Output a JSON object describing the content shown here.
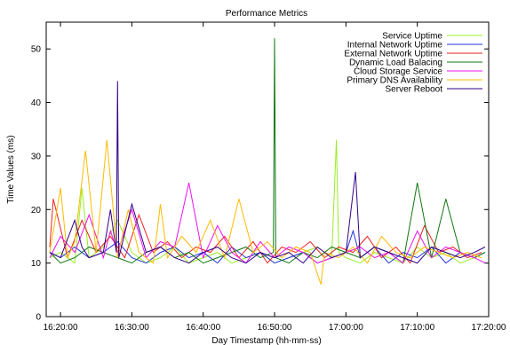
{
  "chart_data": {
    "type": "line",
    "title": "Performance Metrics",
    "xlabel": "Day Timestamp (hh-mm-ss)",
    "ylabel": "Time Values (ms)",
    "xlim": [
      "16:18:00",
      "17:20:00"
    ],
    "ylim": [
      0,
      55
    ],
    "grid": false,
    "legend_position": "top-right",
    "xticks": [
      "16:20:00",
      "16:30:00",
      "16:40:00",
      "16:50:00",
      "17:00:00",
      "17:10:00",
      "17:20:00"
    ],
    "yticks": [
      0,
      10,
      20,
      30,
      40,
      50
    ],
    "series": [
      {
        "name": "Service Uptime",
        "color": "#99ee22",
        "x": [
          "16:18:30",
          "16:20:00",
          "16:22:00",
          "16:23:00",
          "16:24:00",
          "16:26:00",
          "16:28:00",
          "16:30:00",
          "16:32:00",
          "16:34:00",
          "16:36:00",
          "16:38:00",
          "16:40:00",
          "16:42:00",
          "16:44:00",
          "16:46:00",
          "16:48:00",
          "16:50:00",
          "16:52:00",
          "16:54:00",
          "16:56:00",
          "16:58:00",
          "16:58:40",
          "16:59:00",
          "17:00:00",
          "17:02:00",
          "17:04:00",
          "17:06:00",
          "17:08:00",
          "17:10:00",
          "17:12:00",
          "17:14:00",
          "17:16:00",
          "17:18:00",
          "17:19:30"
        ],
        "values": [
          11,
          12,
          10,
          24,
          11,
          13,
          18,
          12,
          10,
          11,
          13,
          10,
          11,
          12,
          10,
          11,
          12,
          10,
          11,
          12,
          13,
          11,
          33,
          12,
          11,
          10,
          12,
          11,
          10,
          13,
          11,
          12,
          10,
          11,
          12
        ]
      },
      {
        "name": "Internal Network Uptime",
        "color": "#2233dd",
        "x": [
          "16:18:30",
          "16:20:00",
          "16:22:00",
          "16:24:00",
          "16:26:00",
          "16:28:00",
          "16:30:00",
          "16:32:00",
          "16:34:00",
          "16:36:00",
          "16:38:00",
          "16:40:00",
          "16:42:00",
          "16:44:00",
          "16:46:00",
          "16:48:00",
          "16:50:00",
          "16:52:00",
          "16:54:00",
          "16:56:00",
          "16:58:00",
          "17:00:00",
          "17:01:00",
          "17:02:00",
          "17:04:00",
          "17:06:00",
          "17:08:00",
          "17:10:00",
          "17:12:00",
          "17:14:00",
          "17:16:00",
          "17:18:00",
          "17:19:30"
        ],
        "values": [
          12,
          11,
          13,
          11,
          12,
          14,
          11,
          10,
          12,
          13,
          11,
          12,
          10,
          13,
          11,
          12,
          10,
          11,
          12,
          10,
          11,
          12,
          16,
          11,
          13,
          10,
          12,
          11,
          13,
          10,
          12,
          11,
          12
        ]
      },
      {
        "name": "External Network Uptime",
        "color": "#ee2222",
        "x": [
          "16:18:30",
          "16:19:00",
          "16:21:00",
          "16:23:00",
          "16:25:00",
          "16:27:00",
          "16:29:00",
          "16:31:00",
          "16:33:00",
          "16:35:00",
          "16:37:00",
          "16:39:00",
          "16:41:00",
          "16:43:00",
          "16:45:00",
          "16:47:00",
          "16:49:00",
          "16:51:00",
          "16:53:00",
          "16:55:00",
          "16:57:00",
          "16:59:00",
          "17:01:00",
          "17:03:00",
          "17:05:00",
          "17:07:00",
          "17:09:00",
          "17:11:00",
          "17:13:00",
          "17:15:00",
          "17:17:00",
          "17:19:00"
        ],
        "values": [
          13,
          22,
          11,
          18,
          12,
          15,
          11,
          19,
          12,
          14,
          11,
          13,
          12,
          15,
          11,
          14,
          10,
          13,
          12,
          14,
          11,
          13,
          12,
          15,
          11,
          13,
          10,
          17,
          12,
          13,
          11,
          12
        ]
      },
      {
        "name": "Dynamic Load Balacing",
        "color": "#117711",
        "x": [
          "16:18:30",
          "16:20:00",
          "16:22:00",
          "16:24:00",
          "16:26:00",
          "16:28:00",
          "16:30:00",
          "16:32:00",
          "16:34:00",
          "16:36:00",
          "16:38:00",
          "16:40:00",
          "16:42:00",
          "16:44:00",
          "16:46:00",
          "16:48:00",
          "16:49:50",
          "16:50:00",
          "16:50:10",
          "16:52:00",
          "16:54:00",
          "16:56:00",
          "16:58:00",
          "17:00:00",
          "17:02:00",
          "17:04:00",
          "17:06:00",
          "17:08:00",
          "17:10:00",
          "17:12:00",
          "17:14:00",
          "17:16:00",
          "17:18:00",
          "17:19:30"
        ],
        "values": [
          12,
          10,
          11,
          13,
          12,
          11,
          10,
          12,
          13,
          11,
          12,
          10,
          11,
          12,
          13,
          11,
          12,
          52,
          11,
          10,
          12,
          11,
          13,
          12,
          11,
          13,
          12,
          10,
          25,
          11,
          22,
          12,
          11,
          12
        ]
      },
      {
        "name": "Cloud Storage Service",
        "color": "#ee11ee",
        "x": [
          "16:18:30",
          "16:20:00",
          "16:22:00",
          "16:24:00",
          "16:26:00",
          "16:27:00",
          "16:28:00",
          "16:30:00",
          "16:32:00",
          "16:34:00",
          "16:36:00",
          "16:38:00",
          "16:40:00",
          "16:42:00",
          "16:44:00",
          "16:46:00",
          "16:48:00",
          "16:50:00",
          "16:52:00",
          "16:54:00",
          "16:56:00",
          "16:58:00",
          "17:00:00",
          "17:02:00",
          "17:04:00",
          "17:06:00",
          "17:08:00",
          "17:10:00",
          "17:12:00",
          "17:14:00",
          "17:16:00",
          "17:18:00",
          "17:19:30"
        ],
        "values": [
          11,
          15,
          12,
          19,
          11,
          16,
          12,
          20,
          11,
          14,
          13,
          25,
          11,
          17,
          12,
          10,
          14,
          11,
          13,
          12,
          10,
          11,
          12,
          13,
          11,
          12,
          10,
          16,
          11,
          13,
          12,
          11,
          10
        ]
      },
      {
        "name": "Primary DNS Availability",
        "color": "#ffbb00",
        "x": [
          "16:18:30",
          "16:20:00",
          "16:21:00",
          "16:22:00",
          "16:23:30",
          "16:25:00",
          "16:26:30",
          "16:28:00",
          "16:29:30",
          "16:31:00",
          "16:33:00",
          "16:34:00",
          "16:35:00",
          "16:37:00",
          "16:39:00",
          "16:41:00",
          "16:43:00",
          "16:45:00",
          "16:47:00",
          "16:49:00",
          "16:51:00",
          "16:53:00",
          "16:55:00",
          "16:56:30",
          "16:57:00",
          "16:59:00",
          "17:01:00",
          "17:03:00",
          "17:05:00",
          "17:07:00",
          "17:09:00",
          "17:11:00",
          "17:13:00",
          "17:15:00",
          "17:17:00",
          "17:19:00"
        ],
        "values": [
          12,
          24,
          11,
          14,
          31,
          12,
          33,
          11,
          20,
          12,
          10,
          21,
          11,
          15,
          12,
          18,
          11,
          22,
          12,
          14,
          11,
          13,
          12,
          6,
          12,
          11,
          13,
          10,
          15,
          12,
          11,
          13,
          12,
          11,
          12,
          11
        ]
      },
      {
        "name": "Server Reboot",
        "color": "#330088",
        "x": [
          "16:18:30",
          "16:20:00",
          "16:22:00",
          "16:23:00",
          "16:24:00",
          "16:26:00",
          "16:27:00",
          "16:27:50",
          "16:28:00",
          "16:28:10",
          "16:30:00",
          "16:32:00",
          "16:34:00",
          "16:36:00",
          "16:38:00",
          "16:40:00",
          "16:42:00",
          "16:44:00",
          "16:46:00",
          "16:48:00",
          "16:50:00",
          "16:52:00",
          "16:54:00",
          "16:56:00",
          "16:58:00",
          "17:00:00",
          "17:01:20",
          "17:02:00",
          "17:04:00",
          "17:06:00",
          "17:08:00",
          "17:10:00",
          "17:12:00",
          "17:14:00",
          "17:16:00",
          "17:18:00",
          "17:19:30"
        ],
        "values": [
          12,
          11,
          18,
          13,
          11,
          12,
          20,
          12,
          44,
          11,
          21,
          12,
          13,
          11,
          10,
          12,
          13,
          11,
          10,
          12,
          11,
          12,
          10,
          13,
          11,
          12,
          27,
          11,
          13,
          12,
          11,
          10,
          13,
          12,
          11,
          12,
          13
        ]
      }
    ]
  }
}
